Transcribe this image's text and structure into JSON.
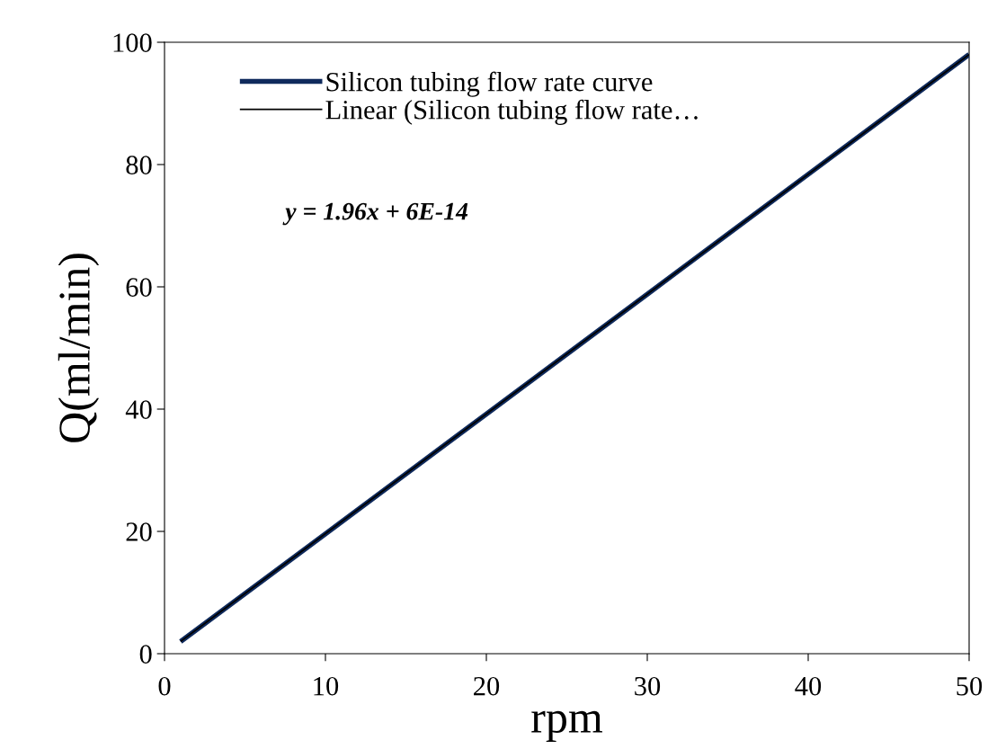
{
  "chart_data": {
    "type": "line",
    "xlabel": "rpm",
    "ylabel": "Q(ml/min)",
    "x": [
      1,
      10,
      20,
      30,
      40,
      50
    ],
    "series": [
      {
        "name": "Silicon tubing flow rate curve",
        "color": "#0f2a5c",
        "values": [
          2,
          19.6,
          39.2,
          58.8,
          78.4,
          98
        ]
      },
      {
        "name": "Linear (Silicon tubing flow rate…",
        "color": "#000000",
        "x": [
          1,
          50
        ],
        "values": [
          2,
          98
        ]
      }
    ],
    "annotations": [
      "y = 1.96x + 6E-14"
    ],
    "xlim": [
      0,
      50
    ],
    "xticks": [
      0,
      10,
      20,
      30,
      40,
      50
    ],
    "ylim": [
      0,
      100
    ],
    "yticks": [
      0,
      20,
      40,
      60,
      80,
      100
    ],
    "grid": false,
    "legend": "top left",
    "marker": "none",
    "line_style": "solid"
  }
}
